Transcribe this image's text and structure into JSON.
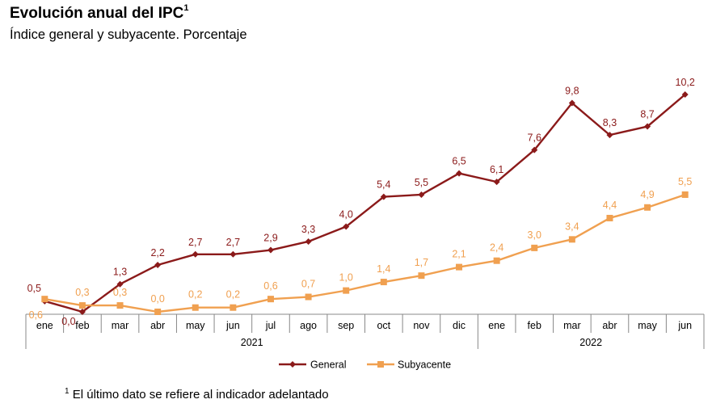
{
  "header": {
    "title": "Evolución anual del IPC",
    "title_sup": "1",
    "subtitle": "Índice general y subyacente. Porcentaje"
  },
  "footnote": {
    "sup": "1",
    "text": "El último dato se refiere al indicador adelantado"
  },
  "chart_data": {
    "type": "line",
    "title": "Evolución anual del IPC",
    "categories": [
      "ene",
      "feb",
      "mar",
      "abr",
      "may",
      "jun",
      "jul",
      "ago",
      "sep",
      "oct",
      "nov",
      "dic",
      "ene",
      "feb",
      "mar",
      "abr",
      "may",
      "jun"
    ],
    "years": [
      {
        "label": "2021",
        "count": 12
      },
      {
        "label": "2022",
        "count": 6
      }
    ],
    "series": [
      {
        "name": "General",
        "color": "#8b1a1a",
        "marker": "diamond",
        "values": [
          0.5,
          0.0,
          1.3,
          2.2,
          2.7,
          2.7,
          2.9,
          3.3,
          4.0,
          5.4,
          5.5,
          6.5,
          6.1,
          7.6,
          9.8,
          8.3,
          8.7,
          10.2
        ],
        "labels": [
          "0,5",
          "0,0",
          "1,3",
          "2,2",
          "2,7",
          "2,7",
          "2,9",
          "3,3",
          "4,0",
          "5,4",
          "5,5",
          "6,5",
          "6,1",
          "7,6",
          "9,8",
          "8,3",
          "8,7",
          "10,2"
        ]
      },
      {
        "name": "Subyacente",
        "color": "#f0a050",
        "marker": "square",
        "values": [
          0.6,
          0.3,
          0.3,
          0.0,
          0.2,
          0.2,
          0.6,
          0.7,
          1.0,
          1.4,
          1.7,
          2.1,
          2.4,
          3.0,
          3.4,
          4.4,
          4.9,
          5.5
        ],
        "labels": [
          "0,6",
          "0,3",
          "0,3",
          "0,0",
          "0,2",
          "0,2",
          "0,6",
          "0,7",
          "1,0",
          "1,4",
          "1,7",
          "2,1",
          "2,4",
          "3,0",
          "3,4",
          "4,4",
          "4,9",
          "5,5"
        ]
      }
    ],
    "ylim": [
      0,
      10.2
    ],
    "legend": "bottom"
  }
}
